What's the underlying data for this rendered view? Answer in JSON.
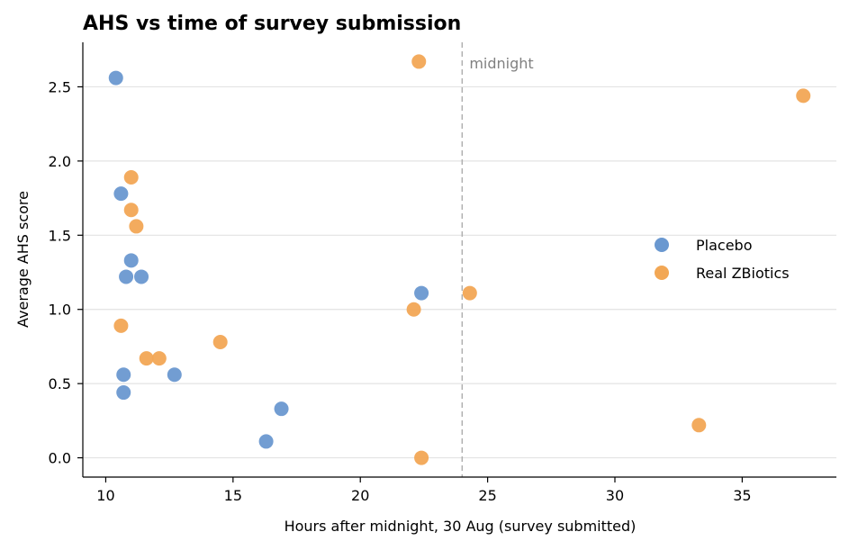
{
  "chart_data": {
    "type": "scatter",
    "title": "AHS vs time of survey submission",
    "xlabel": "Hours after midnight, 30 Aug (survey submitted)",
    "ylabel": "Average AHS score",
    "xlim": [
      9.1,
      38.7
    ],
    "ylim": [
      -0.13,
      2.8
    ],
    "xticks": [
      10,
      15,
      20,
      25,
      30,
      35
    ],
    "yticks": [
      0.0,
      0.5,
      1.0,
      1.5,
      2.0,
      2.5
    ],
    "ytick_labels": [
      "0.0",
      "0.5",
      "1.0",
      "1.5",
      "2.0",
      "2.5"
    ],
    "grid": "horizontal",
    "legend_position": "right",
    "annotation": {
      "text": "midnight",
      "x": 24
    },
    "series": [
      {
        "name": "Placebo",
        "color": "#6a98d0",
        "points": [
          {
            "x": 10.4,
            "y": 2.56
          },
          {
            "x": 10.6,
            "y": 1.78
          },
          {
            "x": 11.0,
            "y": 1.33
          },
          {
            "x": 10.8,
            "y": 1.22
          },
          {
            "x": 11.4,
            "y": 1.22
          },
          {
            "x": 10.7,
            "y": 0.56
          },
          {
            "x": 10.7,
            "y": 0.44
          },
          {
            "x": 12.7,
            "y": 0.56
          },
          {
            "x": 16.9,
            "y": 0.33
          },
          {
            "x": 16.3,
            "y": 0.11
          },
          {
            "x": 22.4,
            "y": 1.11
          }
        ]
      },
      {
        "name": "Real ZBiotics",
        "color": "#f2a755",
        "points": [
          {
            "x": 22.3,
            "y": 2.67
          },
          {
            "x": 37.4,
            "y": 2.44
          },
          {
            "x": 11.0,
            "y": 1.89
          },
          {
            "x": 11.0,
            "y": 1.67
          },
          {
            "x": 11.2,
            "y": 1.56
          },
          {
            "x": 10.6,
            "y": 0.89
          },
          {
            "x": 11.6,
            "y": 0.67
          },
          {
            "x": 12.1,
            "y": 0.67
          },
          {
            "x": 14.5,
            "y": 0.78
          },
          {
            "x": 22.1,
            "y": 1.0
          },
          {
            "x": 24.3,
            "y": 1.11
          },
          {
            "x": 22.4,
            "y": 0.0
          },
          {
            "x": 33.3,
            "y": 0.22
          }
        ]
      }
    ]
  }
}
